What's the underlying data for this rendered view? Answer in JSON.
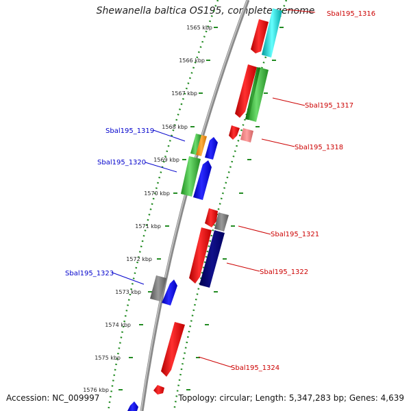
{
  "header": {
    "title": "Shewanella baltica OS195, complete genome"
  },
  "footer": {
    "accession": "Accession: NC_009997",
    "topology": "Topology: circular; Length: 5,347,283 bp; Genes: 4,639"
  },
  "scale_ticks": [
    "1565 kbp",
    "1566 kbp",
    "1567 kbp",
    "1568 kbp",
    "1569 kbp",
    "1570 kbp",
    "1571 kbp",
    "1572 kbp",
    "1573 kbp",
    "1574 kbp",
    "1575 kbp",
    "1576 kbp"
  ],
  "gene_labels": {
    "sbal1316": "Sbal195_1316",
    "sbal1317": "Sbal195_1317",
    "sbal1318": "Sbal195_1318",
    "sbal1319": "Sbal195_1319",
    "sbal1320": "Sbal195_1320",
    "sbal1321": "Sbal195_1321",
    "sbal1322": "Sbal195_1322",
    "sbal1323": "Sbal195_1323",
    "sbal1324": "Sbal195_1324"
  },
  "colors": {
    "forward_label": "#0000cc",
    "reverse_label": "#cc0000",
    "scale_dots": "#228b22",
    "backbone": "#8a8a8a"
  }
}
